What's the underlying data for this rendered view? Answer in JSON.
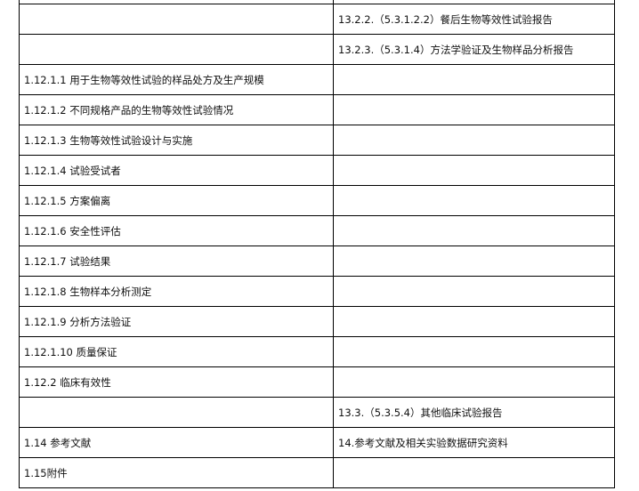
{
  "rows": [
    {
      "left": "",
      "right": ""
    },
    {
      "left": "",
      "right": "13.2.2.（5.3.1.2.2）餐后生物等效性试验报告"
    },
    {
      "left": "",
      "right": "13.2.3.（5.3.1.4）方法学验证及生物样品分析报告"
    },
    {
      "left": "1.12.1.1 用于生物等效性试验的样品处方及生产规模",
      "right": ""
    },
    {
      "left": "1.12.1.2 不同规格产品的生物等效性试验情况",
      "right": ""
    },
    {
      "left": "1.12.1.3 生物等效性试验设计与实施",
      "right": ""
    },
    {
      "left": "1.12.1.4 试验受试者",
      "right": ""
    },
    {
      "left": "1.12.1.5 方案偏离",
      "right": ""
    },
    {
      "left": "1.12.1.6 安全性评估",
      "right": ""
    },
    {
      "left": "1.12.1.7 试验结果",
      "right": ""
    },
    {
      "left": "1.12.1.8 生物样本分析测定",
      "right": ""
    },
    {
      "left": "1.12.1.9 分析方法验证",
      "right": ""
    },
    {
      "left": "1.12.1.10 质量保证",
      "right": ""
    },
    {
      "left": "1.12.2 临床有效性",
      "right": ""
    },
    {
      "left": "",
      "right": "13.3.（5.3.5.4）其他临床试验报告"
    },
    {
      "left": "1.14 参考文献",
      "right": "14.参考文献及相关实验数据研究资料"
    },
    {
      "left": "1.15附件",
      "right": ""
    }
  ]
}
